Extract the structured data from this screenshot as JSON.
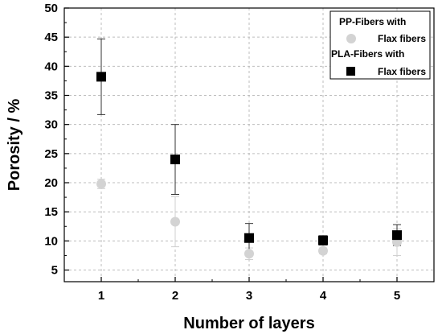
{
  "chart_data": {
    "type": "scatter",
    "xlabel": "Number of layers",
    "ylabel": "Porosity / %",
    "xlim": [
      0.5,
      5.5
    ],
    "ylim": [
      3,
      50
    ],
    "x_ticks": [
      1,
      2,
      3,
      4,
      5
    ],
    "y_ticks": [
      5,
      10,
      15,
      20,
      25,
      30,
      35,
      40,
      45,
      50
    ],
    "grid": true,
    "legend_position": "top-right",
    "legend": [
      {
        "group": "PP-Fibers with",
        "label": "Flax fibers"
      },
      {
        "group": "PLA-Fibers with",
        "label": "Flax fibers"
      }
    ],
    "series": [
      {
        "name": "PP-Fibers with Flax fibers",
        "marker": "circle",
        "color": "#d3d3d3",
        "x": [
          1,
          2,
          3,
          4,
          5
        ],
        "y": [
          19.8,
          13.3,
          7.8,
          8.3,
          9.8
        ],
        "err": [
          0.8,
          4.3,
          1.0,
          0.5,
          2.3
        ]
      },
      {
        "name": "PLA-Fibers with Flax fibers",
        "marker": "square",
        "color": "#000000",
        "x": [
          1,
          2,
          3,
          4,
          5
        ],
        "y": [
          38.2,
          24.0,
          10.5,
          10.1,
          11.0
        ],
        "err": [
          6.5,
          6.0,
          2.5,
          0.8,
          1.8
        ]
      }
    ]
  }
}
